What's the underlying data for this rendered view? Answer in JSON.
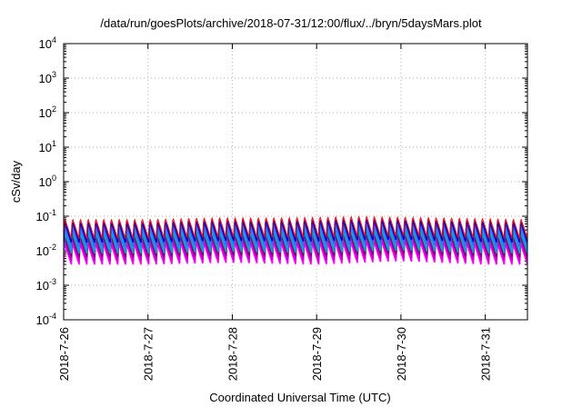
{
  "chart_data": {
    "type": "line",
    "title": "/data/run/goesPlots/archive/2018-07-31/12:00/flux/../bryn/5daysMars.plot",
    "xlabel": "Coordinated Universal Time (UTC)",
    "ylabel": "cSv/day",
    "yscale": "log",
    "ylim": [
      0.0001,
      10000
    ],
    "xlim": [
      "2018-07-26 00:00",
      "2018-07-31 12:00"
    ],
    "grid": true,
    "x_ticks": [
      "2018-7-26",
      "2018-7-27",
      "2018-7-28",
      "2018-7-29",
      "2018-7-30",
      "2018-7-31"
    ],
    "y_ticks": [
      {
        "value": 0.0001,
        "mantissa": "10",
        "exp": "-4"
      },
      {
        "value": 0.001,
        "mantissa": "10",
        "exp": "-3"
      },
      {
        "value": 0.01,
        "mantissa": "10",
        "exp": "-2"
      },
      {
        "value": 0.1,
        "mantissa": "10",
        "exp": "-1"
      },
      {
        "value": 1,
        "mantissa": "10",
        "exp": "0"
      },
      {
        "value": 10,
        "mantissa": "10",
        "exp": "1"
      },
      {
        "value": 100,
        "mantissa": "10",
        "exp": "2"
      },
      {
        "value": 1000,
        "mantissa": "10",
        "exp": "3"
      },
      {
        "value": 10000,
        "mantissa": "10",
        "exp": "4"
      }
    ],
    "series_colors": [
      "#ff00ff",
      "#cc00cc",
      "#800080",
      "#00aaaa",
      "#1e90ff",
      "#4169e1",
      "#0000cd",
      "#ff0000"
    ],
    "envelope": {
      "upper_day_values": [
        {
          "x": "2018-07-26",
          "y": 0.09
        },
        {
          "x": "2018-07-27",
          "y": 0.09
        },
        {
          "x": "2018-07-27 18:00",
          "y": 0.1
        },
        {
          "x": "2018-07-28 12:00",
          "y": 0.1
        },
        {
          "x": "2018-07-29 12:00",
          "y": 0.11
        },
        {
          "x": "2018-07-30 12:00",
          "y": 0.1
        },
        {
          "x": "2018-07-31 12:00",
          "y": 0.09
        }
      ],
      "lower_day_values": [
        {
          "x": "2018-07-26",
          "y": 0.004
        },
        {
          "x": "2018-07-27",
          "y": 0.004
        },
        {
          "x": "2018-07-28",
          "y": 0.0045
        },
        {
          "x": "2018-07-29",
          "y": 0.004
        },
        {
          "x": "2018-07-30",
          "y": 0.005
        },
        {
          "x": "2018-07-31",
          "y": 0.004
        }
      ]
    }
  }
}
